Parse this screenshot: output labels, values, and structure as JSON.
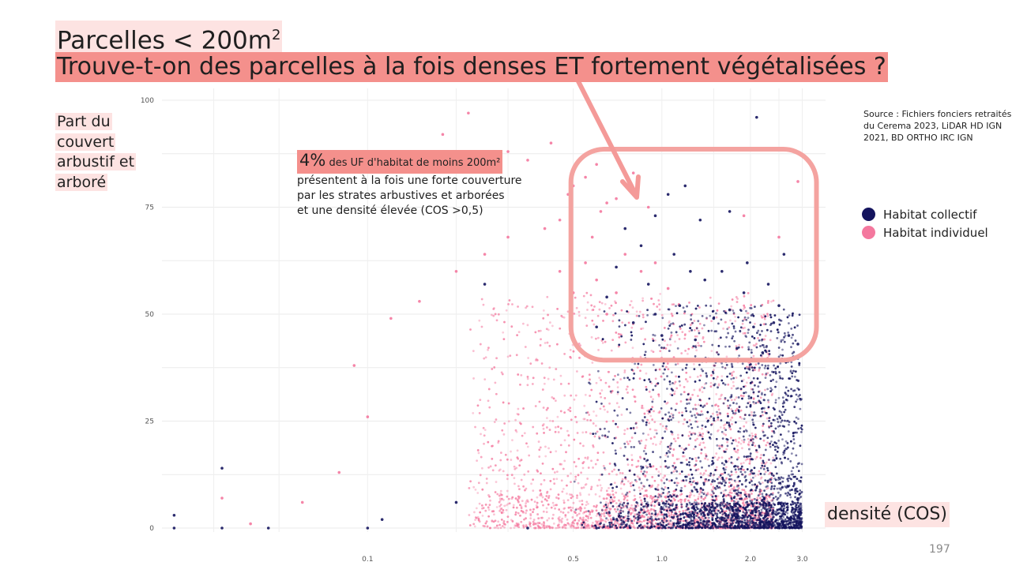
{
  "titles": {
    "line1_main": "Parcelles < 200m",
    "line1_sup": "2",
    "line2": "Trouve-t-on des parcelles à la fois denses ET fortement végétalisées ?"
  },
  "axes": {
    "ylabel_lines": [
      "Part du",
      "couvert",
      "arbustif et",
      "arboré"
    ],
    "xlabel": "densité (COS)"
  },
  "annotation": {
    "pct": "4%",
    "first_line": "des UF d'habitat de moins 200m²",
    "lines": [
      "présentent à la fois une forte couverture",
      "par les strates arbustives et arborées",
      "et une densité élevée (COS >0,5)"
    ]
  },
  "source": "Source : Fichiers fonciers retraités du Cerema 2023, LiDAR HD IGN 2021, BD ORTHO IRC IGN",
  "legend": [
    {
      "label": "Habitat collectif",
      "color": "#14145e"
    },
    {
      "label": "Habitat individuel",
      "color": "#f4789e"
    }
  ],
  "page_number": "197",
  "colors": {
    "highlight_light": "#fde3e2",
    "highlight_strong": "#f4908c",
    "box_stroke": "#f4a3a0",
    "arrow": "#f49a98"
  },
  "chart_data": {
    "type": "scatter",
    "x_scale": "log",
    "xlim": [
      0.02,
      3.6
    ],
    "ylim": [
      0,
      100
    ],
    "x_ticks": [
      0.1,
      0.5,
      1.0,
      2.0,
      3.0
    ],
    "x_tick_labels": [
      "0.1",
      "0.5",
      "1.0",
      "2.0",
      "3.0"
    ],
    "y_ticks": [
      0,
      25,
      50,
      75,
      100
    ],
    "y_tick_labels": [
      "0",
      "25",
      "50",
      "75",
      "100"
    ],
    "grid": true,
    "legend_position": "right",
    "highlight_region": {
      "x": [
        0.5,
        3.0
      ],
      "y": [
        40,
        88
      ]
    },
    "series": [
      {
        "name": "Habitat collectif",
        "color": "#14145e",
        "points": [
          [
            1.2,
            80
          ],
          [
            1.05,
            78
          ],
          [
            2.1,
            96
          ],
          [
            1.7,
            74
          ],
          [
            0.95,
            73
          ],
          [
            1.35,
            72
          ],
          [
            2.6,
            64
          ],
          [
            1.1,
            64
          ],
          [
            1.25,
            60
          ],
          [
            1.6,
            60
          ],
          [
            2.3,
            57
          ],
          [
            2.9,
            43
          ],
          [
            1.9,
            55
          ],
          [
            2.5,
            52
          ],
          [
            1.4,
            58
          ],
          [
            0.85,
            66
          ],
          [
            0.75,
            70
          ],
          [
            0.7,
            61
          ],
          [
            0.9,
            57
          ],
          [
            1.15,
            52
          ],
          [
            1.5,
            49
          ],
          [
            2.05,
            47
          ],
          [
            2.7,
            45
          ],
          [
            0.65,
            54
          ],
          [
            1.8,
            42
          ],
          [
            2.2,
            41
          ],
          [
            0.8,
            48
          ],
          [
            1.0,
            45
          ],
          [
            1.3,
            44
          ],
          [
            0.6,
            47
          ],
          [
            2.8,
            40
          ],
          [
            1.7,
            51
          ],
          [
            2.4,
            48
          ],
          [
            1.95,
            62
          ],
          [
            0.95,
            50
          ],
          [
            0.25,
            57
          ],
          [
            0.022,
            3
          ],
          [
            0.032,
            14
          ],
          [
            0.032,
            0
          ],
          [
            0.022,
            0
          ],
          [
            0.046,
            0
          ],
          [
            0.1,
            0
          ],
          [
            0.112,
            2
          ],
          [
            0.2,
            6
          ],
          [
            0.6,
            0
          ],
          [
            0.35,
            0
          ]
        ]
      },
      {
        "name": "Habitat individuel",
        "color": "#f4789e",
        "points": [
          [
            0.22,
            97
          ],
          [
            0.18,
            92
          ],
          [
            0.42,
            90
          ],
          [
            0.35,
            86
          ],
          [
            0.3,
            88
          ],
          [
            0.6,
            85
          ],
          [
            0.55,
            82
          ],
          [
            0.48,
            78
          ],
          [
            0.65,
            76
          ],
          [
            0.5,
            80
          ],
          [
            0.45,
            72
          ],
          [
            0.4,
            70
          ],
          [
            0.58,
            68
          ],
          [
            0.62,
            74
          ],
          [
            0.7,
            77
          ],
          [
            0.8,
            83
          ],
          [
            0.9,
            75
          ],
          [
            0.3,
            68
          ],
          [
            0.25,
            64
          ],
          [
            0.2,
            60
          ],
          [
            0.15,
            53
          ],
          [
            0.12,
            49
          ],
          [
            0.09,
            38
          ],
          [
            0.1,
            26
          ],
          [
            0.08,
            13
          ],
          [
            0.06,
            6
          ],
          [
            0.04,
            1
          ],
          [
            0.032,
            7
          ],
          [
            2.9,
            81
          ],
          [
            2.5,
            68
          ],
          [
            1.9,
            73
          ],
          [
            0.55,
            62
          ],
          [
            0.6,
            58
          ],
          [
            0.75,
            64
          ],
          [
            0.85,
            60
          ],
          [
            0.7,
            55
          ],
          [
            0.65,
            50
          ],
          [
            0.95,
            62
          ],
          [
            1.05,
            56
          ],
          [
            0.5,
            55
          ],
          [
            0.45,
            60
          ]
        ]
      }
    ]
  }
}
